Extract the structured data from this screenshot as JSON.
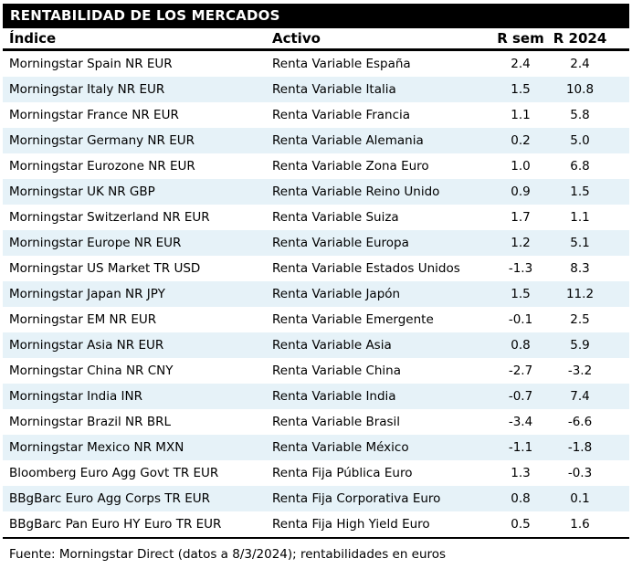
{
  "title": "RENTABILIDAD DE LOS MERCADOS",
  "footer": "Fuente: Morningstar Direct (datos a 8/3/2024); rentabilidades en euros",
  "colors": {
    "title_bar_bg": "#000000",
    "title_bar_text": "#ffffff",
    "row_alt_bg": "#e6f2f8",
    "text": "#000000"
  },
  "chart_data": {
    "type": "table",
    "title": "RENTABILIDAD DE LOS MERCADOS",
    "columns": [
      "Índice",
      "Activo",
      "R sem",
      "R 2024"
    ],
    "rows": [
      {
        "indice": "Morningstar Spain NR EUR",
        "activo": "Renta Variable España",
        "r_sem": "2.4",
        "r_2024": "2.4"
      },
      {
        "indice": "Morningstar Italy NR EUR",
        "activo": "Renta Variable Italia",
        "r_sem": "1.5",
        "r_2024": "10.8"
      },
      {
        "indice": "Morningstar France NR EUR",
        "activo": "Renta Variable Francia",
        "r_sem": "1.1",
        "r_2024": "5.8"
      },
      {
        "indice": "Morningstar Germany NR EUR",
        "activo": "Renta Variable Alemania",
        "r_sem": "0.2",
        "r_2024": "5.0"
      },
      {
        "indice": "Morningstar Eurozone NR EUR",
        "activo": "Renta Variable Zona Euro",
        "r_sem": "1.0",
        "r_2024": "6.8"
      },
      {
        "indice": "Morningstar UK NR GBP",
        "activo": "Renta Variable Reino Unido",
        "r_sem": "0.9",
        "r_2024": "1.5"
      },
      {
        "indice": "Morningstar Switzerland NR EUR",
        "activo": "Renta Variable Suiza",
        "r_sem": "1.7",
        "r_2024": "1.1"
      },
      {
        "indice": "Morningstar Europe NR EUR",
        "activo": "Renta Variable Europa",
        "r_sem": "1.2",
        "r_2024": "5.1"
      },
      {
        "indice": "Morningstar US Market TR USD",
        "activo": "Renta Variable Estados Unidos",
        "r_sem": "-1.3",
        "r_2024": "8.3"
      },
      {
        "indice": "Morningstar Japan NR JPY",
        "activo": "Renta Variable Japón",
        "r_sem": "1.5",
        "r_2024": "11.2"
      },
      {
        "indice": "Morningstar EM NR EUR",
        "activo": "Renta Variable Emergente",
        "r_sem": "-0.1",
        "r_2024": "2.5"
      },
      {
        "indice": "Morningstar Asia NR EUR",
        "activo": "Renta Variable Asia",
        "r_sem": "0.8",
        "r_2024": "5.9"
      },
      {
        "indice": "Morningstar China NR CNY",
        "activo": "Renta Variable China",
        "r_sem": "-2.7",
        "r_2024": "-3.2"
      },
      {
        "indice": "Morningstar India INR",
        "activo": "Renta Variable India",
        "r_sem": "-0.7",
        "r_2024": "7.4"
      },
      {
        "indice": "Morningstar Brazil NR BRL",
        "activo": "Renta Variable Brasil",
        "r_sem": "-3.4",
        "r_2024": "-6.6"
      },
      {
        "indice": "Morningstar Mexico NR MXN",
        "activo": "Renta Variable México",
        "r_sem": "-1.1",
        "r_2024": "-1.8"
      },
      {
        "indice": "Bloomberg Euro Agg Govt TR EUR",
        "activo": "Renta Fija Pública Euro",
        "r_sem": "1.3",
        "r_2024": "-0.3"
      },
      {
        "indice": "BBgBarc Euro Agg Corps TR EUR",
        "activo": "Renta Fija Corporativa Euro",
        "r_sem": "0.8",
        "r_2024": "0.1"
      },
      {
        "indice": "BBgBarc Pan Euro HY Euro TR EUR",
        "activo": "Renta Fija High Yield Euro",
        "r_sem": "0.5",
        "r_2024": "1.6"
      }
    ]
  }
}
